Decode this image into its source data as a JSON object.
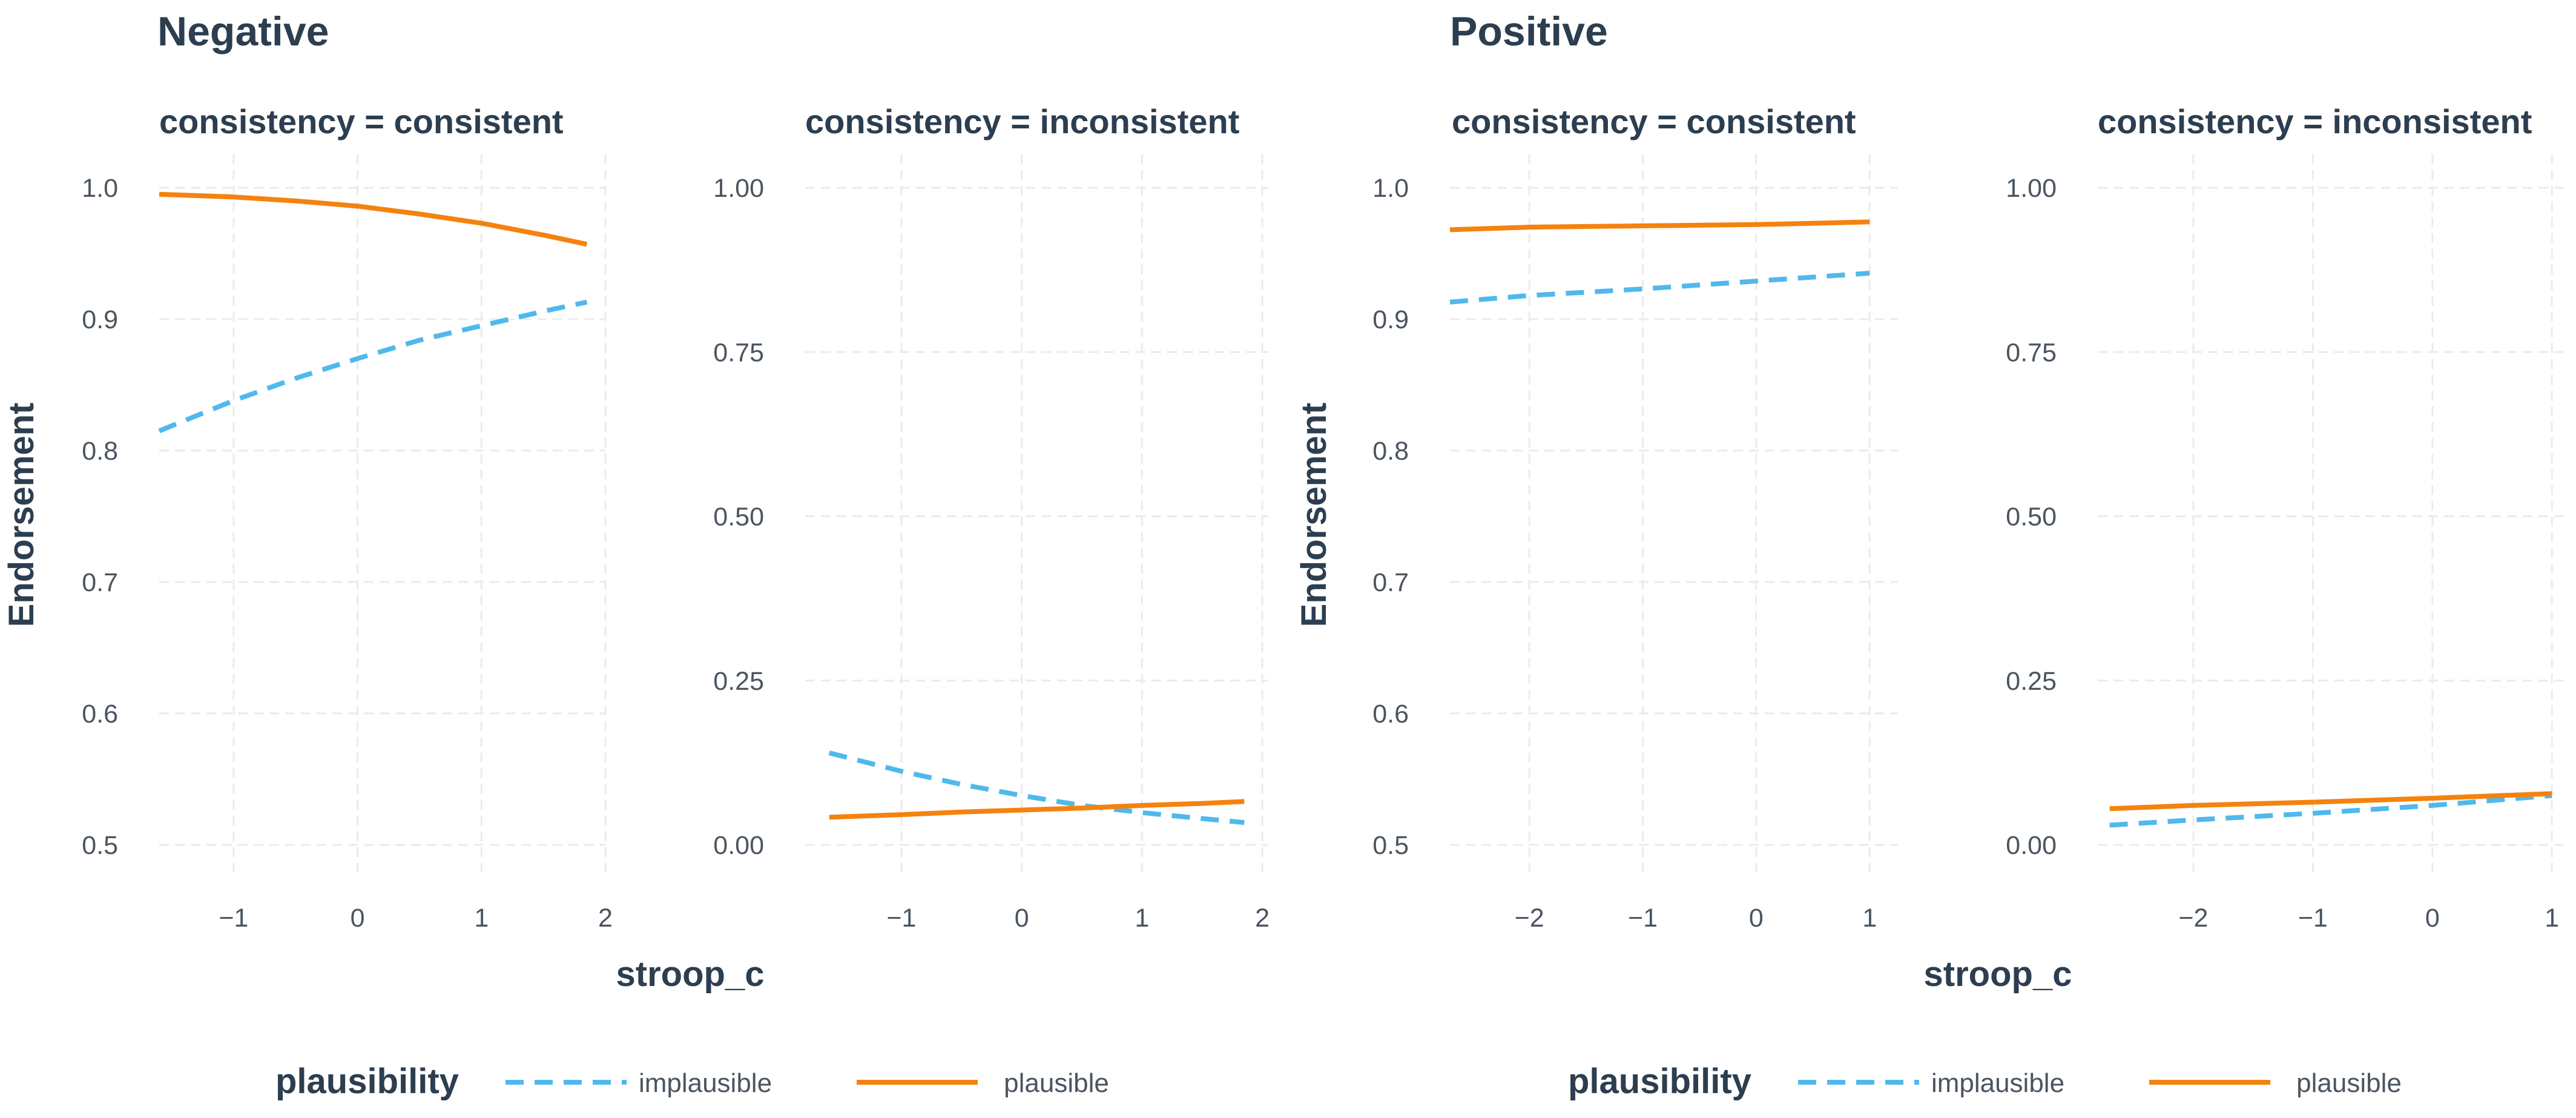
{
  "chart_data": {
    "type": "line",
    "ylabel": "Endorsement",
    "xlabel": "stroop_c",
    "legend": {
      "title": "plausibility",
      "entries": [
        {
          "name": "implausible",
          "color": "#4fb9ec",
          "dash": "dashed"
        },
        {
          "name": "plausible",
          "color": "#f5820f",
          "dash": "solid"
        }
      ]
    },
    "groups": [
      {
        "title": "Negative",
        "panels": [
          {
            "title": "consistency = consistent",
            "xlim": [
              -1.6,
              2.0
            ],
            "ylim": [
              0.5,
              1.0
            ],
            "xticks": [
              {
                "v": -1,
                "label": "−1"
              },
              {
                "v": 0,
                "label": "0"
              },
              {
                "v": 1,
                "label": "1"
              },
              {
                "v": 2,
                "label": "2"
              }
            ],
            "yticks": [
              {
                "v": 0.5,
                "label": "0.5"
              },
              {
                "v": 0.6,
                "label": "0.6"
              },
              {
                "v": 0.7,
                "label": "0.7"
              },
              {
                "v": 0.8,
                "label": "0.8"
              },
              {
                "v": 0.9,
                "label": "0.9"
              },
              {
                "v": 1.0,
                "label": "1.0"
              }
            ],
            "series": [
              {
                "name": "implausible",
                "x": [
                  -1.6,
                  -1.0,
                  -0.5,
                  0.0,
                  0.5,
                  1.0,
                  1.5,
                  1.85
                ],
                "y": [
                  0.815,
                  0.838,
                  0.855,
                  0.87,
                  0.884,
                  0.895,
                  0.906,
                  0.913
                ]
              },
              {
                "name": "plausible",
                "x": [
                  -1.6,
                  -1.0,
                  -0.5,
                  0.0,
                  0.5,
                  1.0,
                  1.5,
                  1.85
                ],
                "y": [
                  0.995,
                  0.993,
                  0.99,
                  0.986,
                  0.98,
                  0.973,
                  0.964,
                  0.957
                ]
              }
            ]
          },
          {
            "title": "consistency = inconsistent",
            "xlim": [
              -1.8,
              2.05
            ],
            "ylim": [
              0.0,
              1.0
            ],
            "xticks": [
              {
                "v": -1,
                "label": "−1"
              },
              {
                "v": 0,
                "label": "0"
              },
              {
                "v": 1,
                "label": "1"
              },
              {
                "v": 2,
                "label": "2"
              }
            ],
            "yticks": [
              {
                "v": 0.0,
                "label": "0.00"
              },
              {
                "v": 0.25,
                "label": "0.25"
              },
              {
                "v": 0.5,
                "label": "0.50"
              },
              {
                "v": 0.75,
                "label": "0.75"
              },
              {
                "v": 1.0,
                "label": "1.00"
              }
            ],
            "series": [
              {
                "name": "implausible",
                "x": [
                  -1.6,
                  -1.0,
                  -0.5,
                  0.0,
                  0.5,
                  1.0,
                  1.5,
                  1.85
                ],
                "y": [
                  0.14,
                  0.112,
                  0.092,
                  0.075,
                  0.06,
                  0.049,
                  0.04,
                  0.034
                ]
              },
              {
                "name": "plausible",
                "x": [
                  -1.6,
                  -1.0,
                  -0.5,
                  0.0,
                  0.5,
                  1.0,
                  1.5,
                  1.85
                ],
                "y": [
                  0.042,
                  0.046,
                  0.05,
                  0.053,
                  0.056,
                  0.06,
                  0.063,
                  0.066
                ]
              }
            ]
          }
        ]
      },
      {
        "title": "Positive",
        "panels": [
          {
            "title": "consistency = consistent",
            "xlim": [
              -2.7,
              1.25
            ],
            "ylim": [
              0.5,
              1.0
            ],
            "xticks": [
              {
                "v": -2,
                "label": "−2"
              },
              {
                "v": -1,
                "label": "−1"
              },
              {
                "v": 0,
                "label": "0"
              },
              {
                "v": 1,
                "label": "1"
              }
            ],
            "yticks": [
              {
                "v": 0.5,
                "label": "0.5"
              },
              {
                "v": 0.6,
                "label": "0.6"
              },
              {
                "v": 0.7,
                "label": "0.7"
              },
              {
                "v": 0.8,
                "label": "0.8"
              },
              {
                "v": 0.9,
                "label": "0.9"
              },
              {
                "v": 1.0,
                "label": "1.0"
              }
            ],
            "series": [
              {
                "name": "implausible",
                "x": [
                  -2.7,
                  -2.0,
                  -1.0,
                  0.0,
                  1.0
                ],
                "y": [
                  0.913,
                  0.918,
                  0.923,
                  0.929,
                  0.935
                ]
              },
              {
                "name": "plausible",
                "x": [
                  -2.7,
                  -2.0,
                  -1.0,
                  0.0,
                  1.0
                ],
                "y": [
                  0.968,
                  0.97,
                  0.971,
                  0.972,
                  0.974
                ]
              }
            ]
          },
          {
            "title": "consistency = inconsistent",
            "xlim": [
              -2.8,
              1.1
            ],
            "ylim": [
              0.0,
              1.0
            ],
            "xticks": [
              {
                "v": -2,
                "label": "−2"
              },
              {
                "v": -1,
                "label": "−1"
              },
              {
                "v": 0,
                "label": "0"
              },
              {
                "v": 1,
                "label": "1"
              }
            ],
            "yticks": [
              {
                "v": 0.0,
                "label": "0.00"
              },
              {
                "v": 0.25,
                "label": "0.25"
              },
              {
                "v": 0.5,
                "label": "0.50"
              },
              {
                "v": 0.75,
                "label": "0.75"
              },
              {
                "v": 1.0,
                "label": "1.00"
              }
            ],
            "series": [
              {
                "name": "implausible",
                "x": [
                  -2.7,
                  -2.0,
                  -1.0,
                  0.0,
                  1.0
                ],
                "y": [
                  0.03,
                  0.038,
                  0.048,
                  0.06,
                  0.075
                ]
              },
              {
                "name": "plausible",
                "x": [
                  -2.7,
                  -2.0,
                  -1.0,
                  0.0,
                  1.0
                ],
                "y": [
                  0.055,
                  0.06,
                  0.065,
                  0.071,
                  0.078
                ]
              }
            ]
          }
        ]
      }
    ]
  }
}
